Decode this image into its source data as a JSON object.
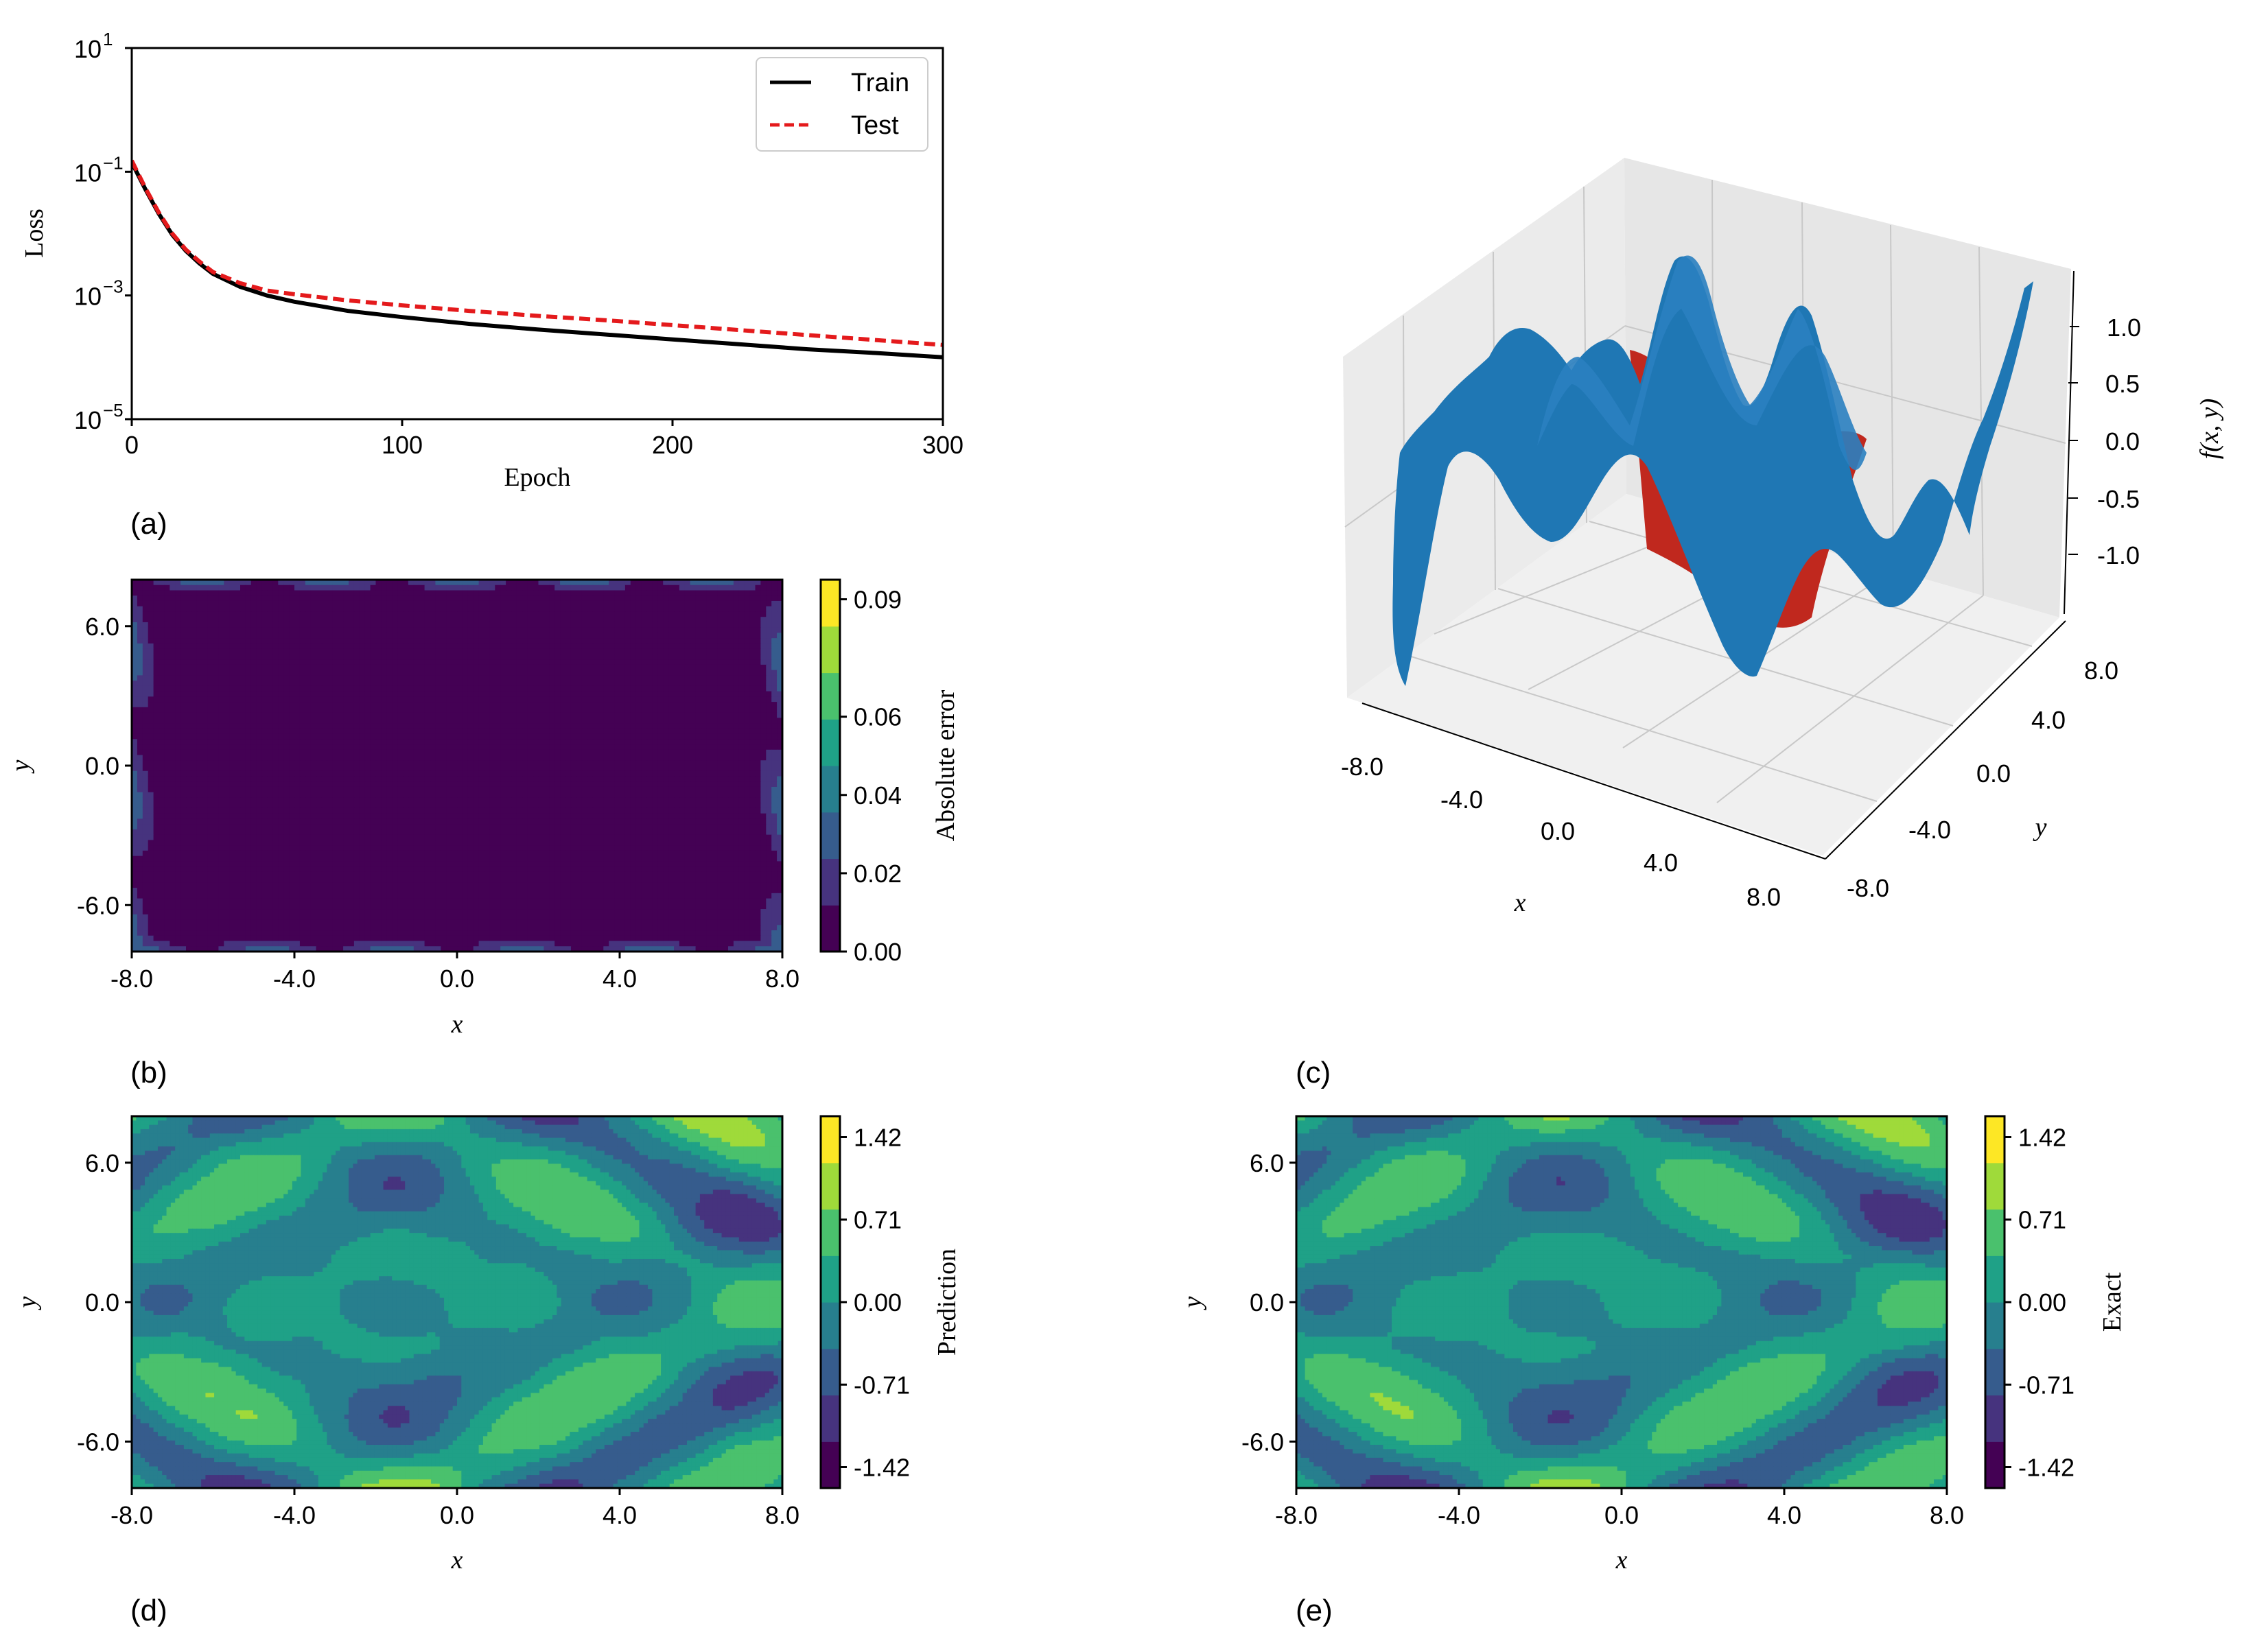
{
  "figure": {
    "panels": [
      {
        "label": "(a)"
      },
      {
        "label": "(b)"
      },
      {
        "label": "(c)"
      },
      {
        "label": "(d)"
      },
      {
        "label": "(e)"
      }
    ]
  },
  "colors": {
    "train": "#000000",
    "test": "#e41a1c",
    "surface": "#1f77b4",
    "surface_dark": "#174f7f",
    "pane": "#ebebeb",
    "viridis": [
      "#440154",
      "#46337e",
      "#365c8d",
      "#277f8e",
      "#1fa187",
      "#4ac16d",
      "#9fda3a",
      "#fde725"
    ]
  },
  "chart_data": [
    {
      "id": "a",
      "type": "line",
      "xlabel": "Epoch",
      "ylabel": "Loss",
      "yscale": "log",
      "xlim": [
        0,
        300
      ],
      "ylim_exp": [
        -5,
        1
      ],
      "xticks": [
        "0",
        "100",
        "200",
        "300"
      ],
      "yticks": [
        {
          "base": "10",
          "exp": "1"
        },
        {
          "base": "10",
          "exp": "−1"
        },
        {
          "base": "10",
          "exp": "−3"
        },
        {
          "base": "10",
          "exp": "−5"
        }
      ],
      "legend": {
        "position": "top-right",
        "entries": [
          "Train",
          "Test"
        ]
      },
      "series": [
        {
          "name": "Train",
          "style": "solid",
          "x": [
            0,
            5,
            10,
            15,
            20,
            25,
            30,
            40,
            50,
            60,
            80,
            100,
            125,
            150,
            175,
            200,
            225,
            250,
            275,
            300
          ],
          "log10y": [
            -0.85,
            -1.28,
            -1.68,
            -2.02,
            -2.28,
            -2.48,
            -2.65,
            -2.86,
            -3.0,
            -3.1,
            -3.25,
            -3.35,
            -3.46,
            -3.55,
            -3.63,
            -3.71,
            -3.79,
            -3.87,
            -3.93,
            -4.0
          ]
        },
        {
          "name": "Test",
          "style": "dashed",
          "x": [
            0,
            5,
            10,
            15,
            20,
            25,
            30,
            40,
            50,
            60,
            80,
            100,
            125,
            150,
            175,
            200,
            225,
            250,
            275,
            300
          ],
          "log10y": [
            -0.82,
            -1.26,
            -1.66,
            -2.0,
            -2.26,
            -2.45,
            -2.62,
            -2.8,
            -2.92,
            -2.98,
            -3.08,
            -3.16,
            -3.25,
            -3.33,
            -3.4,
            -3.48,
            -3.56,
            -3.64,
            -3.72,
            -3.8
          ]
        }
      ]
    },
    {
      "id": "b",
      "type": "heatmap",
      "field": "absolute_error",
      "xlabel": "x",
      "ylabel": "y",
      "xlim": [
        -8,
        8
      ],
      "ylim": [
        -8,
        8
      ],
      "xticks": [
        "-8.0",
        "-4.0",
        "0.0",
        "4.0",
        "8.0"
      ],
      "yticks": [
        "6.0",
        "0.0",
        "-6.0"
      ],
      "ytick_values": [
        6,
        0,
        -6
      ],
      "colorbar": {
        "label": "Absolute error",
        "min": 0.0,
        "max": 0.095,
        "ticks": [
          "0.09",
          "0.06",
          "0.04",
          "0.02",
          "0.00"
        ],
        "tick_values": [
          0.09,
          0.06,
          0.04,
          0.02,
          0.0
        ]
      }
    },
    {
      "id": "c",
      "type": "surface3d",
      "xlabel": "x",
      "ylabel": "y",
      "zlabel": "f(x, y)",
      "xticks": [
        "-8.0",
        "-4.0",
        "0.0",
        "4.0",
        "8.0"
      ],
      "yticks": [
        "-8.0",
        "-4.0",
        "0.0",
        "4.0",
        "8.0"
      ],
      "zticks": [
        "1.0",
        "0.5",
        "0.0",
        "-0.5",
        "-1.0"
      ]
    },
    {
      "id": "d",
      "type": "heatmap",
      "field": "prediction",
      "xlabel": "x",
      "ylabel": "y",
      "xlim": [
        -8,
        8
      ],
      "ylim": [
        -8,
        8
      ],
      "xticks": [
        "-8.0",
        "-4.0",
        "0.0",
        "4.0",
        "8.0"
      ],
      "yticks": [
        "6.0",
        "0.0",
        "-6.0"
      ],
      "colorbar": {
        "label": "Prediction",
        "min": -1.6,
        "max": 1.6,
        "ticks": [
          "1.42",
          "0.71",
          "0.00",
          "-0.71",
          "-1.42"
        ],
        "tick_values": [
          1.42,
          0.71,
          0.0,
          -0.71,
          -1.42
        ]
      }
    },
    {
      "id": "e",
      "type": "heatmap",
      "field": "exact",
      "xlabel": "x",
      "ylabel": "y",
      "xlim": [
        -8,
        8
      ],
      "ylim": [
        -8,
        8
      ],
      "xticks": [
        "-8.0",
        "-4.0",
        "0.0",
        "4.0",
        "8.0"
      ],
      "yticks": [
        "6.0",
        "0.0",
        "-6.0"
      ],
      "colorbar": {
        "label": "Exact",
        "min": -1.6,
        "max": 1.6,
        "ticks": [
          "1.42",
          "0.71",
          "0.00",
          "-0.71",
          "-1.42"
        ],
        "tick_values": [
          1.42,
          0.71,
          0.0,
          -0.71,
          -1.42
        ]
      }
    }
  ]
}
